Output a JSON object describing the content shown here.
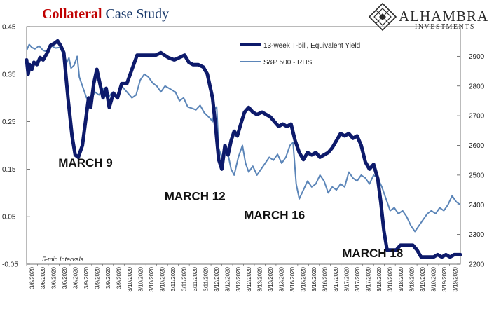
{
  "header": {
    "title_highlight": "Collateral",
    "title_rest": " Case Study"
  },
  "logo": {
    "name": "ALHAMBRA",
    "subtitle": "INVESTMENTS"
  },
  "note": "5-min Intervals",
  "colors": {
    "tbill": "#0d1a6b",
    "spx": "#5b85b8",
    "title_accent": "#c00000"
  },
  "chart_data": {
    "type": "line",
    "x_tick_labels": [
      "3/6/2020",
      "3/6/2020",
      "3/6/2020",
      "3/6/2020",
      "3/6/2020",
      "3/9/2020",
      "3/9/2020",
      "3/9/2020",
      "3/9/2020",
      "3/10/2020",
      "3/10/2020",
      "3/10/2020",
      "3/10/2020",
      "3/11/2020",
      "3/11/2020",
      "3/11/2020",
      "3/11/2020",
      "3/12/2020",
      "3/12/2020",
      "3/12/2020",
      "3/12/2020",
      "3/13/2020",
      "3/13/2020",
      "3/13/2020",
      "3/16/2020",
      "3/16/2020",
      "3/16/2020",
      "3/16/2020",
      "3/17/2020",
      "3/17/2020",
      "3/17/2020",
      "3/17/2020",
      "3/18/2020",
      "3/18/2020",
      "3/18/2020",
      "3/18/2020",
      "3/19/2020",
      "3/19/2020",
      "3/19/2020",
      "3/19/2020"
    ],
    "y_left": {
      "range": [
        -0.05,
        0.45
      ],
      "ticks": [
        "-0.05",
        "0.05",
        "0.15",
        "0.25",
        "0.35",
        "0.45"
      ]
    },
    "y_right": {
      "range": [
        2200,
        3000
      ],
      "ticks": [
        "2200",
        "2300",
        "2400",
        "2500",
        "2600",
        "2700",
        "2800",
        "2900"
      ]
    },
    "legend": {
      "placement": "top-right",
      "entries": [
        "13-week T-bill, Equivalent Yield",
        "S&P 500 - RHS"
      ]
    },
    "annotations": [
      {
        "text": "MARCH 9",
        "x": 5.7,
        "y": 0.155
      },
      {
        "text": "MARCH 12",
        "x": 16.3,
        "y": 0.085
      },
      {
        "text": "MARCH 16",
        "x": 24.0,
        "y": 0.045
      },
      {
        "text": "MARCH 18",
        "x": 33.5,
        "y": -0.035
      }
    ],
    "series": [
      {
        "name": "13-week T-bill, Equivalent Yield",
        "axis": "left",
        "points": [
          [
            0,
            0.38
          ],
          [
            0.15,
            0.35
          ],
          [
            0.3,
            0.37
          ],
          [
            0.5,
            0.36
          ],
          [
            0.7,
            0.375
          ],
          [
            1.0,
            0.37
          ],
          [
            1.3,
            0.385
          ],
          [
            1.6,
            0.38
          ],
          [
            2.0,
            0.395
          ],
          [
            2.3,
            0.41
          ],
          [
            2.7,
            0.415
          ],
          [
            3.0,
            0.42
          ],
          [
            3.3,
            0.41
          ],
          [
            3.6,
            0.395
          ],
          [
            4.0,
            0.3
          ],
          [
            4.4,
            0.22
          ],
          [
            4.7,
            0.18
          ],
          [
            5.0,
            0.175
          ],
          [
            5.4,
            0.2
          ],
          [
            5.7,
            0.25
          ],
          [
            6.0,
            0.3
          ],
          [
            6.2,
            0.28
          ],
          [
            6.5,
            0.33
          ],
          [
            6.8,
            0.36
          ],
          [
            7.1,
            0.33
          ],
          [
            7.4,
            0.3
          ],
          [
            7.7,
            0.32
          ],
          [
            8.0,
            0.28
          ],
          [
            8.4,
            0.31
          ],
          [
            8.8,
            0.3
          ],
          [
            9.2,
            0.33
          ],
          [
            9.7,
            0.33
          ],
          [
            10.2,
            0.36
          ],
          [
            10.7,
            0.39
          ],
          [
            11.5,
            0.39
          ],
          [
            12.5,
            0.39
          ],
          [
            13.0,
            0.395
          ],
          [
            13.7,
            0.385
          ],
          [
            14.3,
            0.38
          ],
          [
            14.8,
            0.385
          ],
          [
            15.3,
            0.39
          ],
          [
            15.7,
            0.375
          ],
          [
            16.1,
            0.37
          ],
          [
            16.6,
            0.37
          ],
          [
            17.1,
            0.365
          ],
          [
            17.5,
            0.35
          ],
          [
            18.0,
            0.3
          ],
          [
            18.3,
            0.24
          ],
          [
            18.6,
            0.17
          ],
          [
            18.9,
            0.15
          ],
          [
            19.2,
            0.2
          ],
          [
            19.5,
            0.18
          ],
          [
            19.8,
            0.21
          ],
          [
            20.1,
            0.23
          ],
          [
            20.4,
            0.22
          ],
          [
            20.8,
            0.25
          ],
          [
            21.1,
            0.27
          ],
          [
            21.5,
            0.28
          ],
          [
            21.9,
            0.27
          ],
          [
            22.3,
            0.265
          ],
          [
            22.8,
            0.27
          ],
          [
            23.2,
            0.265
          ],
          [
            23.6,
            0.26
          ],
          [
            24.0,
            0.25
          ],
          [
            24.4,
            0.24
          ],
          [
            24.8,
            0.245
          ],
          [
            25.2,
            0.24
          ],
          [
            25.6,
            0.245
          ],
          [
            26.0,
            0.21
          ],
          [
            26.4,
            0.185
          ],
          [
            26.8,
            0.17
          ],
          [
            27.2,
            0.185
          ],
          [
            27.6,
            0.18
          ],
          [
            28.0,
            0.185
          ],
          [
            28.4,
            0.175
          ],
          [
            28.8,
            0.18
          ],
          [
            29.2,
            0.185
          ],
          [
            29.6,
            0.195
          ],
          [
            30.0,
            0.21
          ],
          [
            30.4,
            0.225
          ],
          [
            30.8,
            0.22
          ],
          [
            31.2,
            0.225
          ],
          [
            31.6,
            0.215
          ],
          [
            32.0,
            0.22
          ],
          [
            32.4,
            0.2
          ],
          [
            32.8,
            0.165
          ],
          [
            33.2,
            0.15
          ],
          [
            33.6,
            0.16
          ],
          [
            34.0,
            0.13
          ],
          [
            34.3,
            0.08
          ],
          [
            34.6,
            0.02
          ],
          [
            34.9,
            -0.02
          ],
          [
            35.3,
            -0.02
          ],
          [
            35.8,
            -0.02
          ],
          [
            36.2,
            -0.01
          ],
          [
            36.6,
            -0.01
          ],
          [
            37.0,
            -0.01
          ],
          [
            37.4,
            -0.01
          ],
          [
            37.8,
            -0.02
          ],
          [
            38.2,
            -0.035
          ],
          [
            38.6,
            -0.035
          ],
          [
            39.0,
            -0.035
          ],
          [
            39.4,
            -0.035
          ],
          [
            39.8,
            -0.03
          ],
          [
            40.2,
            -0.035
          ],
          [
            40.6,
            -0.03
          ],
          [
            41.0,
            -0.035
          ],
          [
            41.4,
            -0.03
          ],
          [
            41.8,
            -0.03
          ],
          [
            42.0,
            -0.03
          ]
        ]
      },
      {
        "name": "S&P 500 - RHS",
        "axis": "right",
        "points": [
          [
            0,
            2920
          ],
          [
            0.25,
            2940
          ],
          [
            0.5,
            2930
          ],
          [
            0.8,
            2925
          ],
          [
            1.2,
            2935
          ],
          [
            1.6,
            2920
          ],
          [
            2.0,
            2915
          ],
          [
            2.4,
            2935
          ],
          [
            2.8,
            2928
          ],
          [
            3.2,
            2930
          ],
          [
            3.6,
            2905
          ],
          [
            3.9,
            2880
          ],
          [
            4.1,
            2895
          ],
          [
            4.3,
            2860
          ],
          [
            4.6,
            2870
          ],
          [
            4.9,
            2900
          ],
          [
            5.1,
            2830
          ],
          [
            5.4,
            2800
          ],
          [
            5.8,
            2760
          ],
          [
            6.2,
            2750
          ],
          [
            6.6,
            2780
          ],
          [
            7.0,
            2770
          ],
          [
            7.4,
            2790
          ],
          [
            7.8,
            2755
          ],
          [
            8.2,
            2775
          ],
          [
            8.7,
            2760
          ],
          [
            9.2,
            2800
          ],
          [
            9.7,
            2780
          ],
          [
            10.2,
            2760
          ],
          [
            10.6,
            2770
          ],
          [
            11.0,
            2820
          ],
          [
            11.4,
            2840
          ],
          [
            11.8,
            2830
          ],
          [
            12.2,
            2810
          ],
          [
            12.6,
            2800
          ],
          [
            13.0,
            2780
          ],
          [
            13.4,
            2800
          ],
          [
            13.9,
            2790
          ],
          [
            14.4,
            2780
          ],
          [
            14.8,
            2750
          ],
          [
            15.2,
            2760
          ],
          [
            15.6,
            2730
          ],
          [
            16.0,
            2725
          ],
          [
            16.4,
            2720
          ],
          [
            16.8,
            2735
          ],
          [
            17.2,
            2710
          ],
          [
            17.5,
            2700
          ],
          [
            17.8,
            2690
          ],
          [
            18.0,
            2680
          ],
          [
            18.2,
            2720
          ],
          [
            18.4,
            2730
          ],
          [
            18.6,
            2590
          ],
          [
            18.9,
            2560
          ],
          [
            19.2,
            2600
          ],
          [
            19.5,
            2570
          ],
          [
            19.8,
            2520
          ],
          [
            20.1,
            2500
          ],
          [
            20.5,
            2560
          ],
          [
            20.9,
            2600
          ],
          [
            21.2,
            2540
          ],
          [
            21.5,
            2510
          ],
          [
            21.9,
            2530
          ],
          [
            22.3,
            2500
          ],
          [
            22.7,
            2520
          ],
          [
            23.1,
            2540
          ],
          [
            23.5,
            2560
          ],
          [
            23.9,
            2550
          ],
          [
            24.3,
            2570
          ],
          [
            24.7,
            2540
          ],
          [
            25.1,
            2560
          ],
          [
            25.5,
            2600
          ],
          [
            25.8,
            2610
          ],
          [
            26.1,
            2470
          ],
          [
            26.4,
            2420
          ],
          [
            26.8,
            2450
          ],
          [
            27.2,
            2480
          ],
          [
            27.6,
            2460
          ],
          [
            28.0,
            2470
          ],
          [
            28.4,
            2500
          ],
          [
            28.8,
            2480
          ],
          [
            29.2,
            2440
          ],
          [
            29.6,
            2460
          ],
          [
            30.0,
            2450
          ],
          [
            30.4,
            2470
          ],
          [
            30.8,
            2460
          ],
          [
            31.2,
            2510
          ],
          [
            31.6,
            2490
          ],
          [
            32.0,
            2480
          ],
          [
            32.4,
            2500
          ],
          [
            32.8,
            2490
          ],
          [
            33.2,
            2470
          ],
          [
            33.6,
            2500
          ],
          [
            34.0,
            2490
          ],
          [
            34.4,
            2460
          ],
          [
            34.8,
            2420
          ],
          [
            35.2,
            2380
          ],
          [
            35.6,
            2390
          ],
          [
            36.0,
            2370
          ],
          [
            36.4,
            2380
          ],
          [
            36.8,
            2360
          ],
          [
            37.2,
            2330
          ],
          [
            37.6,
            2310
          ],
          [
            38.0,
            2330
          ],
          [
            38.4,
            2350
          ],
          [
            38.8,
            2370
          ],
          [
            39.2,
            2380
          ],
          [
            39.6,
            2370
          ],
          [
            40.0,
            2390
          ],
          [
            40.4,
            2380
          ],
          [
            40.8,
            2400
          ],
          [
            41.2,
            2430
          ],
          [
            41.6,
            2410
          ],
          [
            42.0,
            2400
          ]
        ]
      }
    ]
  }
}
